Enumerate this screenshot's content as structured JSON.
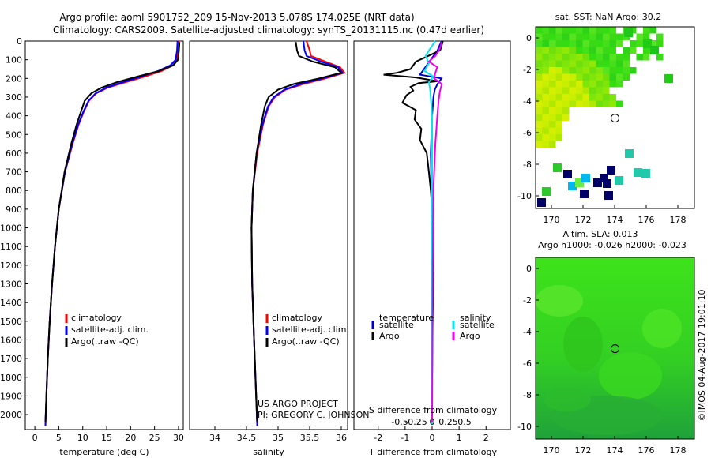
{
  "title": {
    "line1": "Argo profile: aoml 5901752_209 15-Nov-2013 5.078S 174.025E (NRT data)",
    "line2": "Climatology: CARS2009. Satellite-adjusted climatology: synTS_20131115.nc (0.47d earlier)"
  },
  "credits": {
    "project": "US ARGO PROJECT",
    "pi": "PI: GREGORY C. JOHNSON",
    "stamp": "©IMOS 04-Aug-2017 19:01:10"
  },
  "colors": {
    "climatology": "#ff0000",
    "satellite": "#0000ff",
    "argo": "#000000",
    "sat_t": "#0000cc",
    "sal_sat": "#00e5ee",
    "sal_argo": "#ee00ee"
  },
  "legends": {
    "profiles": [
      "climatology",
      "satellite-adj. clim.",
      "Argo(..raw -QC)"
    ],
    "diff": {
      "temp_title": "temperature",
      "sal_title": "salinity",
      "satellite": "satellite",
      "argo": "Argo"
    }
  },
  "maps": {
    "sst_title": "sat. SST: NaN Argo: 30.2",
    "sla_title1": "Altim. SLA: 0.013",
    "sla_title2": "Argo h1000: -0.026 h2000: -0.023",
    "lon_ticks": [
      "170",
      "172",
      "174",
      "176",
      "178"
    ],
    "lat_ticks": [
      "0",
      "-2",
      "-4",
      "-6",
      "-8",
      "-10"
    ],
    "argo_lon": 174.025,
    "argo_lat": -5.078
  },
  "chart_data": [
    {
      "type": "line",
      "title": "",
      "xlabel": "temperature (deg C)",
      "ylabel": "",
      "xlim": [
        -2,
        31
      ],
      "ylim": [
        2080,
        0
      ],
      "x_ticks": [
        "0",
        "5",
        "10",
        "15",
        "20",
        "25",
        "30"
      ],
      "y_ticks": [
        "0",
        "100",
        "200",
        "300",
        "400",
        "500",
        "600",
        "700",
        "800",
        "900",
        "1000",
        "1100",
        "1200",
        "1300",
        "1400",
        "1500",
        "1600",
        "1700",
        "1800",
        "1900",
        "2000"
      ],
      "series": [
        {
          "name": "climatology",
          "color": "#ff0000",
          "points": [
            [
              0,
              30.0
            ],
            [
              50,
              29.9
            ],
            [
              100,
              29.6
            ],
            [
              130,
              28.8
            ],
            [
              160,
              26.5
            ],
            [
              190,
              23.0
            ],
            [
              220,
              19.0
            ],
            [
              250,
              15.2
            ],
            [
              280,
              12.8
            ],
            [
              320,
              11.3
            ],
            [
              380,
              10.2
            ],
            [
              450,
              9.1
            ],
            [
              550,
              7.9
            ],
            [
              700,
              6.3
            ],
            [
              900,
              5.0
            ],
            [
              1100,
              4.2
            ],
            [
              1300,
              3.6
            ],
            [
              1500,
              3.1
            ],
            [
              1700,
              2.7
            ],
            [
              1900,
              2.4
            ],
            [
              2060,
              2.2
            ]
          ]
        },
        {
          "name": "satellite-adj. clim.",
          "color": "#0000ff",
          "points": [
            [
              0,
              29.8
            ],
            [
              50,
              29.7
            ],
            [
              100,
              29.4
            ],
            [
              130,
              28.3
            ],
            [
              160,
              25.8
            ],
            [
              190,
              22.2
            ],
            [
              220,
              18.4
            ],
            [
              250,
              14.9
            ],
            [
              280,
              12.7
            ],
            [
              320,
              11.2
            ],
            [
              380,
              10.1
            ],
            [
              450,
              9.0
            ],
            [
              550,
              7.8
            ],
            [
              700,
              6.3
            ],
            [
              900,
              5.0
            ],
            [
              1100,
              4.2
            ],
            [
              1300,
              3.6
            ],
            [
              1500,
              3.1
            ],
            [
              1700,
              2.7
            ],
            [
              1900,
              2.4
            ],
            [
              2060,
              2.2
            ]
          ]
        },
        {
          "name": "Argo(..raw -QC)",
          "color": "#000000",
          "points": [
            [
              5,
              30.2
            ],
            [
              50,
              30.1
            ],
            [
              100,
              29.9
            ],
            [
              130,
              28.9
            ],
            [
              160,
              26.0
            ],
            [
              190,
              21.5
            ],
            [
              220,
              17.2
            ],
            [
              250,
              13.9
            ],
            [
              280,
              11.8
            ],
            [
              320,
              10.4
            ],
            [
              380,
              9.6
            ],
            [
              450,
              8.7
            ],
            [
              550,
              7.6
            ],
            [
              700,
              6.2
            ],
            [
              900,
              5.0
            ],
            [
              1100,
              4.2
            ],
            [
              1300,
              3.6
            ],
            [
              1500,
              3.1
            ],
            [
              1700,
              2.7
            ],
            [
              1900,
              2.4
            ],
            [
              2040,
              2.2
            ]
          ]
        }
      ]
    },
    {
      "type": "line",
      "title": "",
      "xlabel": "salinity",
      "ylabel": "",
      "xlim": [
        33.6,
        36.1
      ],
      "ylim": [
        2080,
        0
      ],
      "x_ticks": [
        "34",
        "34.5",
        "35",
        "35.5",
        "36"
      ],
      "series": [
        {
          "name": "climatology",
          "color": "#ff0000",
          "points": [
            [
              0,
              35.45
            ],
            [
              50,
              35.5
            ],
            [
              80,
              35.52
            ],
            [
              110,
              35.75
            ],
            [
              140,
              35.98
            ],
            [
              170,
              36.05
            ],
            [
              200,
              35.75
            ],
            [
              230,
              35.4
            ],
            [
              260,
              35.12
            ],
            [
              300,
              34.95
            ],
            [
              350,
              34.85
            ],
            [
              450,
              34.76
            ],
            [
              600,
              34.67
            ],
            [
              800,
              34.6
            ],
            [
              1000,
              34.58
            ],
            [
              1300,
              34.59
            ],
            [
              1600,
              34.62
            ],
            [
              2060,
              34.67
            ]
          ]
        },
        {
          "name": "satellite-adj. clim.",
          "color": "#0000ff",
          "points": [
            [
              0,
              35.4
            ],
            [
              50,
              35.42
            ],
            [
              80,
              35.45
            ],
            [
              110,
              35.68
            ],
            [
              140,
              35.95
            ],
            [
              170,
              36.02
            ],
            [
              200,
              35.7
            ],
            [
              230,
              35.35
            ],
            [
              260,
              35.1
            ],
            [
              300,
              34.93
            ],
            [
              350,
              34.84
            ],
            [
              450,
              34.75
            ],
            [
              600,
              34.66
            ],
            [
              800,
              34.6
            ],
            [
              1000,
              34.58
            ],
            [
              1300,
              34.59
            ],
            [
              1600,
              34.62
            ],
            [
              2060,
              34.67
            ]
          ]
        },
        {
          "name": "Argo(..raw -QC)",
          "color": "#000000",
          "points": [
            [
              5,
              35.28
            ],
            [
              50,
              35.3
            ],
            [
              80,
              35.33
            ],
            [
              110,
              35.55
            ],
            [
              140,
              35.9
            ],
            [
              170,
              36.0
            ],
            [
              200,
              35.65
            ],
            [
              230,
              35.25
            ],
            [
              260,
              35.0
            ],
            [
              300,
              34.85
            ],
            [
              350,
              34.79
            ],
            [
              450,
              34.73
            ],
            [
              600,
              34.66
            ],
            [
              800,
              34.6
            ],
            [
              1000,
              34.58
            ],
            [
              1300,
              34.59
            ],
            [
              1600,
              34.62
            ],
            [
              2040,
              34.67
            ]
          ]
        }
      ]
    },
    {
      "type": "line",
      "title": "",
      "xlabel": "T difference from climatology",
      "xlabel_top": "S difference from climatology",
      "x_ticks_T": [
        "-2",
        "-1",
        "0",
        "1",
        "2"
      ],
      "x_ticks_S": [
        "-0.5",
        "-0.25",
        "0",
        "0.25",
        "0.5"
      ],
      "xlim_T": [
        -2.9,
        2.9
      ],
      "ylim": [
        2080,
        0
      ],
      "series": [
        {
          "name": "temperature satellite",
          "color": "#0000cc",
          "units": "T",
          "points": [
            [
              0,
              0.35
            ],
            [
              50,
              0.2
            ],
            [
              100,
              -0.05
            ],
            [
              150,
              -0.3
            ],
            [
              180,
              -0.45
            ],
            [
              200,
              0.35
            ],
            [
              230,
              0.2
            ],
            [
              260,
              0.1
            ],
            [
              300,
              0.05
            ],
            [
              400,
              0.0
            ],
            [
              600,
              -0.05
            ],
            [
              1000,
              0.0
            ],
            [
              1500,
              0.0
            ],
            [
              2050,
              0.0
            ]
          ]
        },
        {
          "name": "temperature Argo",
          "color": "#000000",
          "units": "T",
          "points": [
            [
              0,
              0.4
            ],
            [
              50,
              0.3
            ],
            [
              90,
              -0.3
            ],
            [
              110,
              -0.6
            ],
            [
              150,
              -0.8
            ],
            [
              170,
              -1.3
            ],
            [
              180,
              -1.8
            ],
            [
              195,
              -0.6
            ],
            [
              215,
              0.2
            ],
            [
              225,
              -0.5
            ],
            [
              245,
              -0.8
            ],
            [
              265,
              -0.7
            ],
            [
              290,
              -0.95
            ],
            [
              330,
              -1.1
            ],
            [
              370,
              -0.6
            ],
            [
              420,
              -0.65
            ],
            [
              470,
              -0.4
            ],
            [
              530,
              -0.45
            ],
            [
              600,
              -0.2
            ],
            [
              700,
              -0.12
            ],
            [
              800,
              -0.05
            ],
            [
              1000,
              0.05
            ],
            [
              1200,
              0.05
            ],
            [
              1500,
              0.02
            ],
            [
              1800,
              0.0
            ],
            [
              2040,
              0.0
            ]
          ]
        },
        {
          "name": "salinity satellite",
          "color": "#00e5ee",
          "units": "S",
          "points": [
            [
              0,
              0.05
            ],
            [
              40,
              -0.03
            ],
            [
              80,
              -0.1
            ],
            [
              120,
              -0.05
            ],
            [
              160,
              -0.12
            ],
            [
              190,
              0.02
            ],
            [
              220,
              -0.05
            ],
            [
              260,
              -0.03
            ],
            [
              400,
              0.0
            ],
            [
              700,
              0.0
            ],
            [
              1200,
              0.0
            ],
            [
              2050,
              0.0
            ]
          ]
        },
        {
          "name": "salinity Argo",
          "color": "#ee00ee",
          "units": "S",
          "points": [
            [
              5,
              0.15
            ],
            [
              40,
              0.12
            ],
            [
              80,
              0.05
            ],
            [
              110,
              -0.05
            ],
            [
              140,
              0.08
            ],
            [
              170,
              0.05
            ],
            [
              200,
              0.03
            ],
            [
              230,
              0.15
            ],
            [
              270,
              0.12
            ],
            [
              320,
              0.1
            ],
            [
              400,
              0.08
            ],
            [
              550,
              0.05
            ],
            [
              800,
              0.02
            ],
            [
              1200,
              0.01
            ],
            [
              2040,
              0.0
            ]
          ]
        }
      ]
    }
  ]
}
